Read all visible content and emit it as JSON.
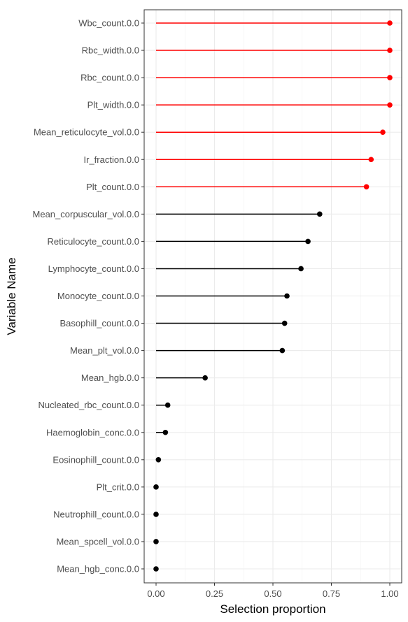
{
  "chart_data": {
    "type": "lollipop",
    "orientation": "horizontal",
    "xlabel": "Selection proportion",
    "ylabel": "Variable Name",
    "xlim": [
      0,
      1
    ],
    "x_ticks": [
      0,
      0.25,
      0.5,
      0.75,
      1
    ],
    "x_tick_labels": [
      "0.00",
      "0.25",
      "0.50",
      "0.75",
      "1.00"
    ],
    "grid": true,
    "colors": {
      "selected": "#ff0000",
      "not_selected": "#000000"
    },
    "categories": [
      "Wbc_count.0.0",
      "Rbc_width.0.0",
      "Rbc_count.0.0",
      "Plt_width.0.0",
      "Mean_reticulocyte_vol.0.0",
      "Ir_fraction.0.0",
      "Plt_count.0.0",
      "Mean_corpuscular_vol.0.0",
      "Reticulocyte_count.0.0",
      "Lymphocyte_count.0.0",
      "Monocyte_count.0.0",
      "Basophill_count.0.0",
      "Mean_plt_vol.0.0",
      "Mean_hgb.0.0",
      "Nucleated_rbc_count.0.0",
      "Haemoglobin_conc.0.0",
      "Eosinophill_count.0.0",
      "Plt_crit.0.0",
      "Neutrophill_count.0.0",
      "Mean_spcell_vol.0.0",
      "Mean_hgb_conc.0.0"
    ],
    "values": [
      1.0,
      1.0,
      1.0,
      1.0,
      0.97,
      0.92,
      0.9,
      0.7,
      0.65,
      0.62,
      0.56,
      0.55,
      0.54,
      0.21,
      0.05,
      0.04,
      0.01,
      0.0,
      0.0,
      0.0,
      0.0
    ],
    "selected": [
      true,
      true,
      true,
      true,
      true,
      true,
      true,
      false,
      false,
      false,
      false,
      false,
      false,
      false,
      false,
      false,
      false,
      false,
      false,
      false,
      false
    ]
  }
}
